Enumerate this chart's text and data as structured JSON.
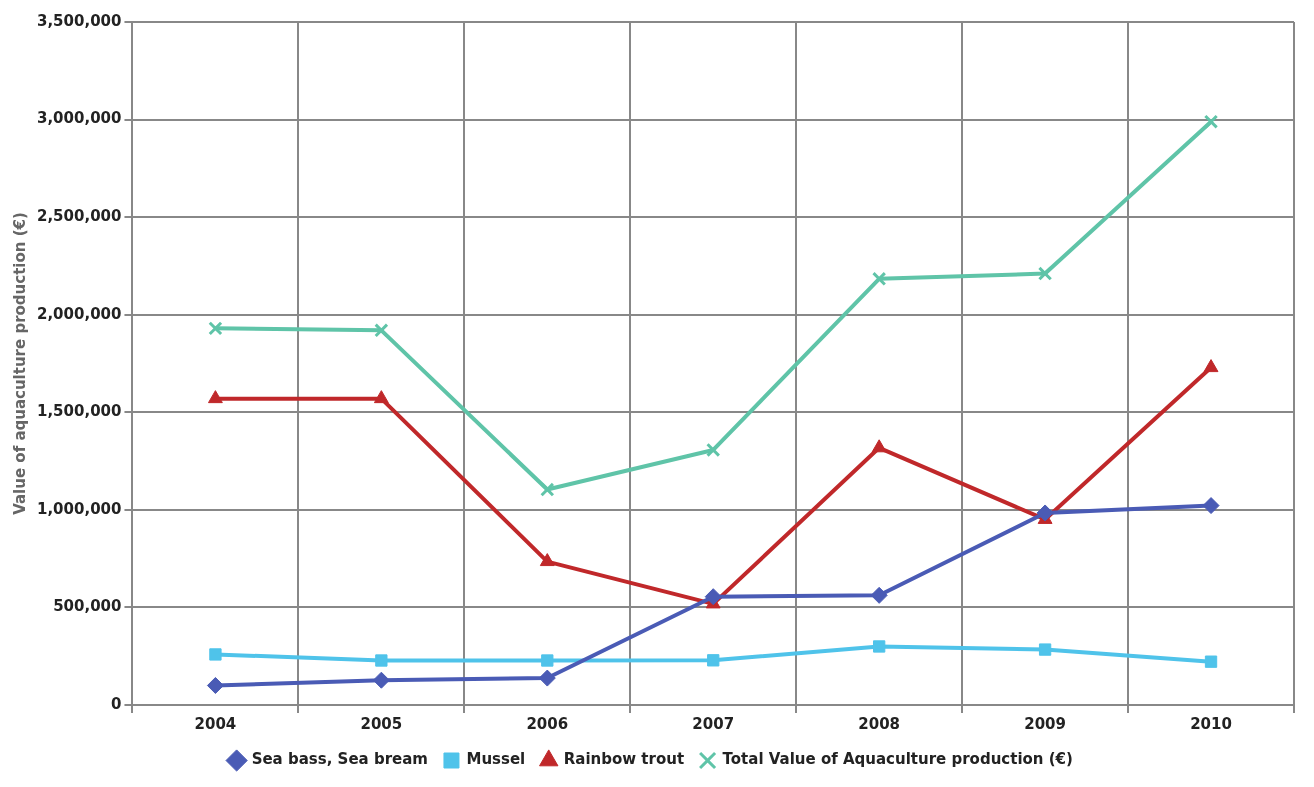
{
  "chart_data": {
    "type": "line",
    "ylabel": "Value of aquaculture production (€)",
    "categories": [
      "2004",
      "2005",
      "2006",
      "2007",
      "2008",
      "2009",
      "2010"
    ],
    "series": [
      {
        "name": "Sea bass, Sea bream",
        "color": "#4a5bb5",
        "marker": "diamond",
        "values": [
          100000,
          127000,
          138000,
          555000,
          562000,
          984000,
          1022000
        ]
      },
      {
        "name": "Mussel",
        "color": "#4fc3ea",
        "marker": "square",
        "values": [
          259000,
          228000,
          228000,
          229000,
          300000,
          284000,
          222000
        ]
      },
      {
        "name": "Rainbow trout",
        "color": "#c0282a",
        "marker": "triangle",
        "values": [
          1570000,
          1570000,
          735000,
          518000,
          1318000,
          951000,
          1729000
        ]
      },
      {
        "name": "Total Value of Aquaculture production (€)",
        "color": "#5fc4a8",
        "marker": "cross",
        "values": [
          1930000,
          1920000,
          1104000,
          1307000,
          2184000,
          2211000,
          2989000
        ]
      }
    ],
    "ylim": [
      0,
      3500000
    ],
    "yticks": [
      {
        "value": 0,
        "label": "0"
      },
      {
        "value": 500000,
        "label": "500,000"
      },
      {
        "value": 1000000,
        "label": "1,000,000"
      },
      {
        "value": 1500000,
        "label": "1,500,000"
      },
      {
        "value": 2000000,
        "label": "2,000,000"
      },
      {
        "value": 2500000,
        "label": "2,500,000"
      },
      {
        "value": 3000000,
        "label": "3,000,000"
      },
      {
        "value": 3500000,
        "label": "3,500,000"
      }
    ],
    "grid": true,
    "legend": "bottom"
  }
}
